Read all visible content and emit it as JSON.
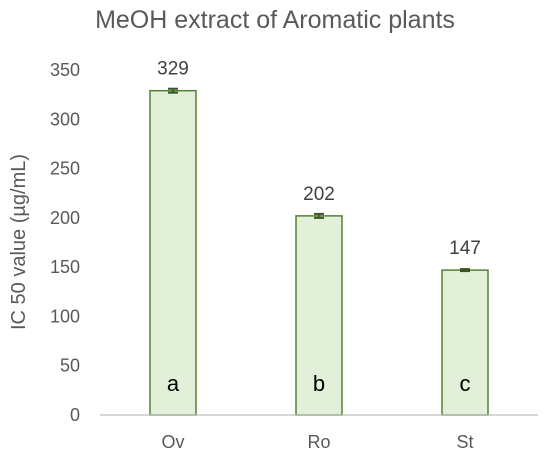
{
  "chart_data": {
    "type": "bar",
    "title": "MeOH extract of Aromatic plants",
    "xlabel": "",
    "ylabel": "IC 50 value (µg/mL)",
    "categories": [
      "Ov",
      "Ro",
      "St"
    ],
    "values": [
      329,
      202,
      147
    ],
    "data_labels": [
      "329",
      "202",
      "147"
    ],
    "error_bars": [
      2,
      2,
      1
    ],
    "group_letters": [
      "a",
      "b",
      "c"
    ],
    "ylim": [
      0,
      350
    ],
    "yticks": [
      "0",
      "50",
      "100",
      "150",
      "200",
      "250",
      "300",
      "350"
    ],
    "grid": false,
    "legend": "none",
    "colors": {
      "bar_fill": "#e2f0d9",
      "bar_stroke": "#548235",
      "axis": "#bfbfbf",
      "error_bar": "#375623"
    }
  }
}
